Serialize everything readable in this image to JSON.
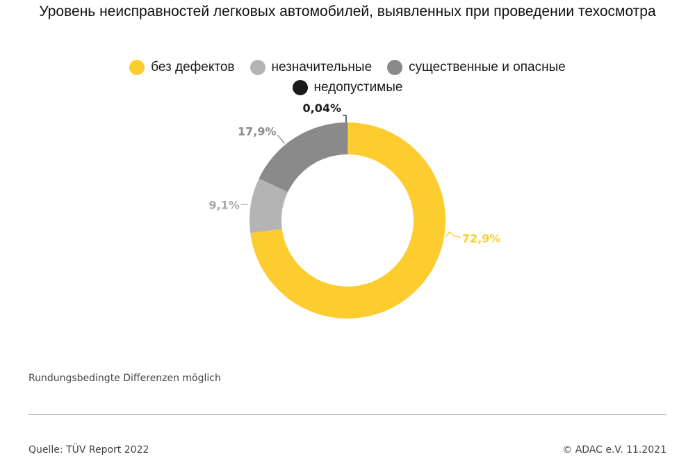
{
  "title": "Уровень неисправностей легковых автомобилей, выявленных при проведении техосмотра",
  "chart_data": {
    "type": "pie",
    "title": "Уровень неисправностей легковых автомобилей, выявленных при проведении техосмотра",
    "donut": true,
    "legend_position": "top",
    "slices": [
      {
        "name": "без дефектов",
        "value": 72.9,
        "label": "72,9%",
        "color": "#fdcc2e"
      },
      {
        "name": "незначительные",
        "value": 9.1,
        "label": "9,1%",
        "color": "#b4b4b4"
      },
      {
        "name": "существенные и опасные",
        "value": 17.9,
        "label": "17,9%",
        "color": "#8a8a8a"
      },
      {
        "name": "недопустимые",
        "value": 0.04,
        "label": "0,04%",
        "color": "#1a1a1a"
      }
    ],
    "label_colors": [
      "#fdcc2e",
      "#a9a9a9",
      "#8a8a8a",
      "#1a1a1a"
    ]
  },
  "footnote": "Rundungsbedingte Differenzen möglich",
  "source": "Quelle: TÜV Report 2022",
  "copyright": "© ADAC e.V. 11.2021"
}
